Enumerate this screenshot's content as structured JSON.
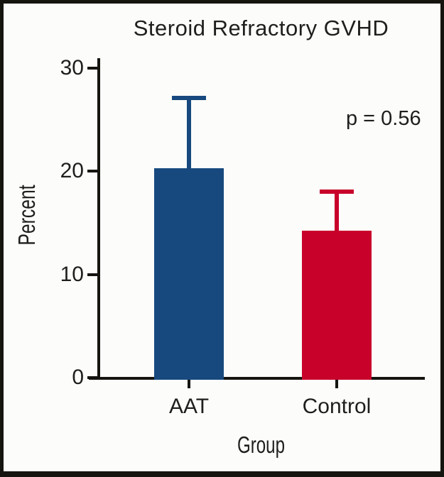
{
  "chart_data": {
    "type": "bar",
    "title": "Steroid Refractory GVHD",
    "xlabel": "Group",
    "ylabel": "Percent",
    "categories": [
      "AAT",
      "Control"
    ],
    "values": [
      20.3,
      14.2
    ],
    "error_upper": [
      27.3,
      18.2
    ],
    "bar_colors": [
      "#17497E",
      "#C8012B"
    ],
    "yticks": [
      0,
      10,
      20,
      30
    ],
    "ylim": [
      0,
      30
    ],
    "annotation": "p = 0.56",
    "grid": false,
    "legend_position": "none",
    "axis_color": "#15140f",
    "frame_border_color": "#15140f",
    "background_color": "#fcfcfa"
  }
}
